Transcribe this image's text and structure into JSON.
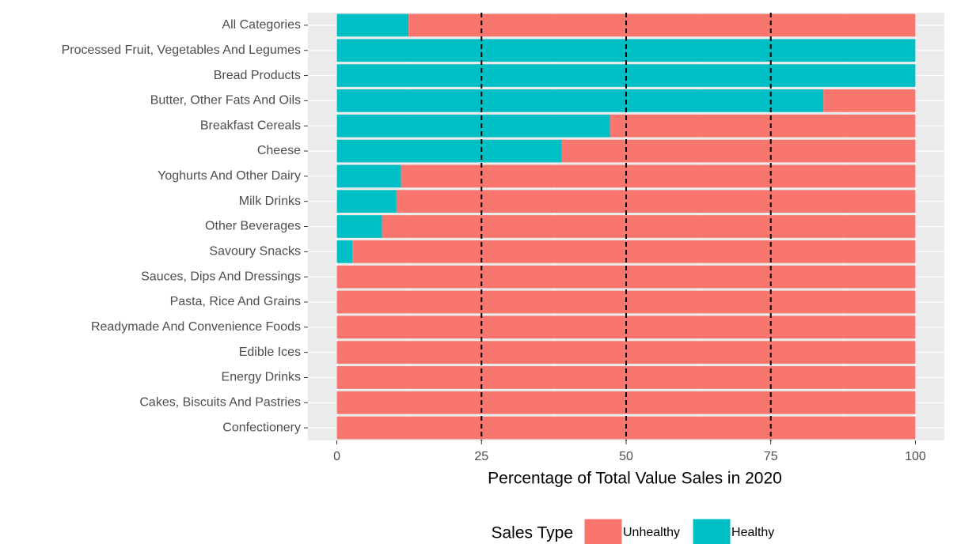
{
  "chart_data": {
    "type": "stacked_barh",
    "x_label": "Percentage of Total Value Sales in 2020",
    "legend_title": "Sales Type",
    "categories": [
      "All Categories",
      "Processed Fruit, Vegetables And Legumes",
      "Bread Products",
      "Butter, Other Fats And Oils",
      "Breakfast Cereals",
      "Cheese",
      "Yoghurts And Other Dairy",
      "Milk Drinks",
      "Other Beverages",
      "Savoury Snacks",
      "Sauces, Dips And Dressings",
      "Pasta, Rice And Grains",
      "Readymade And Convenience Foods",
      "Edible Ices",
      "Energy Drinks",
      "Cakes, Biscuits And Pastries",
      "Confectionery"
    ],
    "series": [
      {
        "name": "Unhealthy",
        "color": "#f8766d",
        "values": [
          87.6,
          0,
          0,
          15.9,
          52.8,
          61.1,
          88.9,
          89.7,
          92.2,
          97.3,
          100,
          100,
          100,
          100,
          100,
          100,
          100
        ]
      },
      {
        "name": "Healthy",
        "color": "#00bfc4",
        "values": [
          12.4,
          100,
          100,
          84.1,
          47.2,
          38.9,
          11.1,
          10.3,
          7.8,
          2.7,
          0,
          0,
          0,
          0,
          0,
          0,
          0
        ]
      }
    ],
    "xlim": [
      -5,
      105
    ],
    "xticks": [
      0,
      25,
      50,
      75,
      100
    ],
    "reference_lines": [
      25,
      50,
      75
    ],
    "grid": true,
    "legend_position": "bottom"
  }
}
